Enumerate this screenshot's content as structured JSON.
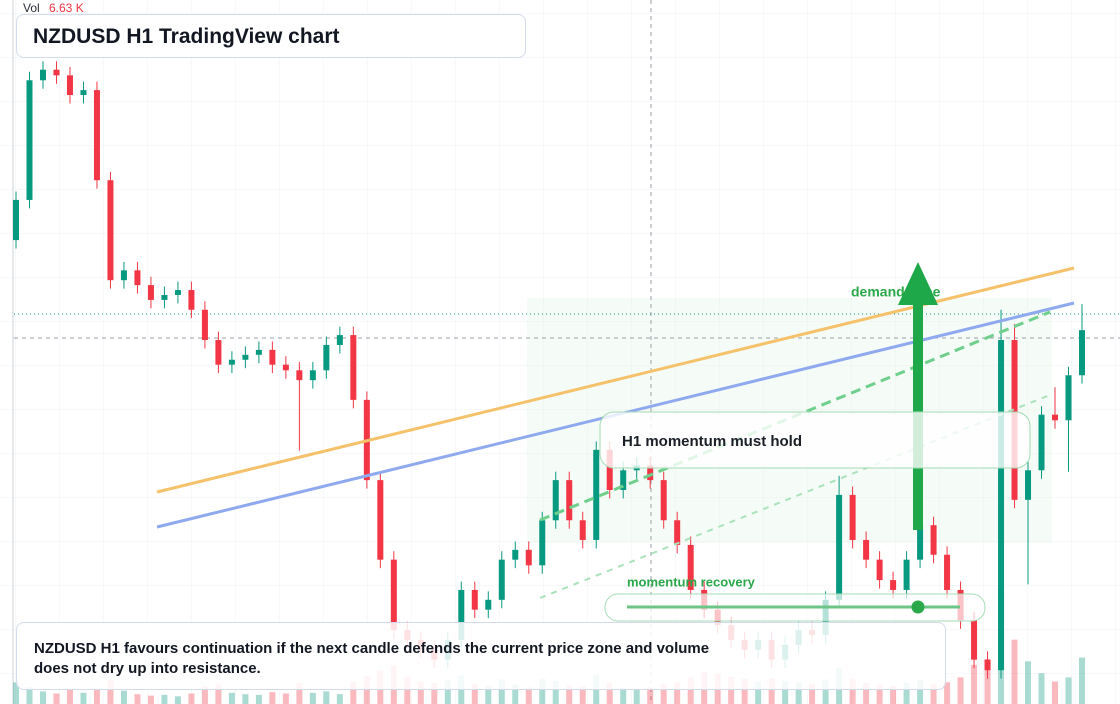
{
  "chart_data": {
    "type": "candlestick",
    "title": "NZDUSD H1 TradingView chart",
    "volume_name": "Vol",
    "volume_last_label": "6.63 K",
    "up_color": "#089981",
    "down_color": "#f23645",
    "ylim": [
      0,
      100
    ],
    "volume_ylim": [
      0,
      40
    ],
    "open": [
      65.9,
      71.6,
      88.6,
      90.1,
      89.3,
      86.5,
      87.2,
      74.4,
      60.2,
      61.6,
      59.5,
      57.4,
      58.1,
      58.8,
      56.0,
      51.7,
      48.2,
      48.9,
      49.6,
      50.3,
      48.2,
      47.4,
      46.0,
      47.4,
      51.0,
      52.4,
      43.2,
      31.8,
      20.5,
      10.5,
      9.1,
      7.7,
      6.3,
      9.1,
      16.2,
      13.4,
      14.8,
      20.5,
      21.9,
      19.7,
      26.1,
      31.8,
      26.1,
      23.3,
      36.1,
      30.4,
      33.2,
      33.9,
      31.8,
      26.1,
      22.6,
      16.2,
      13.4,
      11.2,
      9.1,
      7.7,
      9.1,
      6.3,
      8.4,
      10.5,
      9.8,
      14.8,
      29.7,
      23.3,
      20.5,
      17.6,
      16.2,
      20.5,
      25.4,
      21.2,
      16.2,
      11.9,
      6.3,
      4.8,
      51.7,
      29.0,
      33.2,
      41.1,
      40.3,
      46.7
    ],
    "high": [
      72.8,
      89.8,
      91.3,
      91.3,
      90.5,
      88.4,
      88.4,
      75.6,
      62.8,
      62.8,
      60.7,
      59.3,
      60.0,
      60.0,
      57.2,
      52.9,
      50.1,
      50.8,
      51.5,
      51.5,
      49.4,
      48.6,
      48.6,
      52.2,
      53.6,
      53.6,
      44.4,
      33.0,
      21.7,
      11.7,
      10.3,
      8.9,
      10.3,
      17.4,
      17.4,
      16.0,
      21.7,
      23.1,
      23.1,
      27.3,
      33.0,
      33.0,
      27.3,
      37.3,
      37.3,
      34.4,
      35.1,
      35.1,
      33.0,
      27.3,
      23.8,
      17.4,
      14.6,
      12.4,
      10.3,
      10.3,
      10.3,
      9.6,
      11.7,
      11.7,
      16.0,
      32.4,
      30.9,
      24.5,
      21.7,
      18.8,
      21.7,
      26.6,
      26.6,
      22.4,
      17.4,
      13.1,
      7.5,
      56.0,
      54.0,
      34.4,
      42.3,
      45.0,
      47.9,
      56.8
    ],
    "low": [
      64.7,
      70.4,
      87.4,
      88.1,
      85.3,
      85.3,
      73.2,
      59.0,
      59.0,
      58.3,
      56.2,
      56.2,
      56.9,
      54.8,
      50.5,
      47.0,
      47.0,
      47.7,
      48.4,
      47.0,
      46.2,
      36.0,
      44.8,
      46.2,
      49.8,
      42.0,
      30.6,
      19.3,
      9.3,
      7.9,
      6.5,
      5.1,
      5.1,
      7.9,
      12.2,
      12.2,
      13.6,
      19.3,
      18.5,
      18.5,
      24.9,
      24.9,
      22.1,
      22.1,
      29.2,
      29.2,
      32.0,
      30.6,
      24.9,
      21.4,
      15.0,
      12.2,
      10.0,
      7.9,
      6.5,
      6.5,
      5.1,
      5.1,
      7.2,
      8.6,
      8.6,
      13.6,
      22.1,
      19.3,
      16.4,
      15.0,
      15.0,
      19.3,
      20.0,
      15.0,
      10.7,
      5.1,
      3.6,
      3.6,
      27.8,
      17.0,
      32.0,
      39.1,
      33.0,
      45.5
    ],
    "close": [
      71.6,
      88.6,
      90.1,
      89.3,
      86.5,
      87.2,
      74.4,
      60.2,
      61.6,
      59.5,
      57.4,
      58.1,
      58.8,
      56.0,
      51.7,
      48.2,
      48.9,
      49.6,
      50.3,
      48.2,
      47.4,
      46.0,
      47.4,
      51.0,
      52.4,
      43.2,
      31.8,
      20.5,
      10.5,
      9.1,
      7.7,
      6.3,
      9.1,
      16.2,
      13.4,
      14.8,
      20.5,
      21.9,
      19.7,
      26.1,
      31.8,
      26.1,
      23.3,
      36.1,
      30.4,
      33.2,
      33.9,
      31.8,
      26.1,
      22.6,
      16.2,
      13.4,
      11.2,
      9.1,
      7.7,
      9.1,
      6.3,
      8.4,
      10.5,
      9.8,
      14.8,
      29.7,
      23.3,
      20.5,
      17.6,
      16.2,
      20.5,
      25.4,
      21.2,
      16.2,
      11.9,
      6.3,
      4.8,
      51.7,
      29.0,
      33.2,
      41.1,
      40.3,
      46.7,
      53.1
    ],
    "volume": [
      3.1,
      2.4,
      1.8,
      1.5,
      2.0,
      1.6,
      2.2,
      3.4,
      1.9,
      1.4,
      1.2,
      1.3,
      1.1,
      1.5,
      2.5,
      2.8,
      1.6,
      1.4,
      1.3,
      1.7,
      1.5,
      3.0,
      1.6,
      1.8,
      1.4,
      3.2,
      4.0,
      4.8,
      5.5,
      3.9,
      3.2,
      3.0,
      3.4,
      4.1,
      2.9,
      2.6,
      3.5,
      2.8,
      2.4,
      3.6,
      3.3,
      2.7,
      2.5,
      4.2,
      3.1,
      2.3,
      2.1,
      2.4,
      2.9,
      3.1,
      3.8,
      4.5,
      4.3,
      3.9,
      3.6,
      3.2,
      3.7,
      3.3,
      3.1,
      2.9,
      3.5,
      5.2,
      3.6,
      3.0,
      2.8,
      2.6,
      3.0,
      3.4,
      2.9,
      3.1,
      3.8,
      5.6,
      6.4,
      16.5,
      9.2,
      6.1,
      4.4,
      3.2,
      3.8,
      6.63
    ],
    "annotations": {
      "zone_label": "demand zone",
      "momentum_box": "H1 momentum must hold",
      "slider_label": "momentum recovery",
      "note": "NZDUSD H1 favours continuation if the next candle defends the current price zone and volume does not dry up into resistance."
    }
  }
}
